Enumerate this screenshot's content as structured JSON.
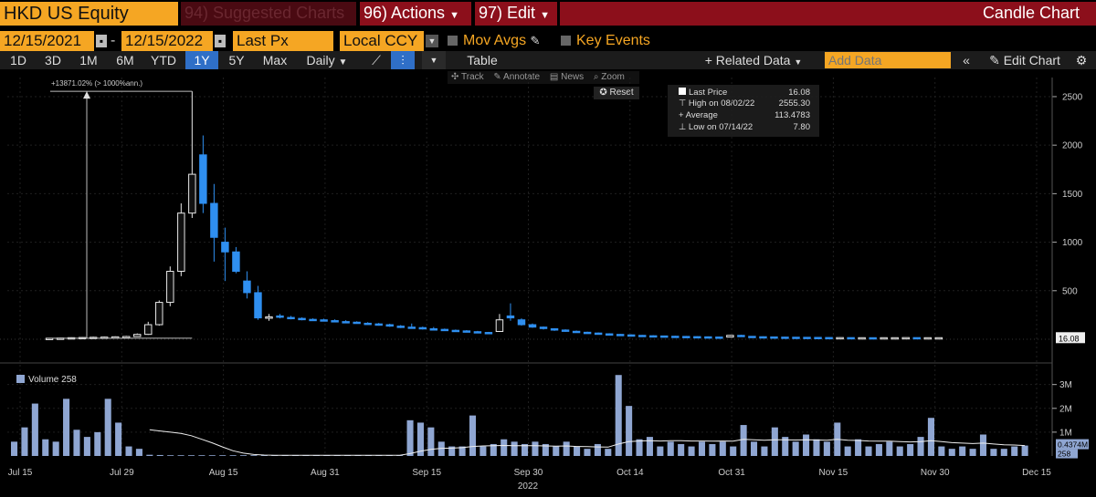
{
  "toolbar": {
    "ticker": "HKD US Equity",
    "suggested": "94) Suggested Charts",
    "actions": "96) Actions",
    "edit": "97) Edit",
    "chart_type": "Candle Chart",
    "start_date": "12/15/2021",
    "end_date": "12/15/2022",
    "field": "Last Px",
    "currency": "Local CCY",
    "mov_avgs": "Mov Avgs",
    "key_events": "Key Events",
    "periods": [
      "1D",
      "3D",
      "1M",
      "6M",
      "YTD",
      "1Y",
      "5Y",
      "Max"
    ],
    "selected_period": "1Y",
    "frequency": "Daily",
    "table": "Table",
    "related": "+ Related Data",
    "add_data_placeholder": "Add Data",
    "edit_chart": "Edit Chart"
  },
  "tools": {
    "track": "Track",
    "annotate": "Annotate",
    "news": "News",
    "zoom": "Zoom",
    "reset": "Reset"
  },
  "legend": {
    "last_label": "Last Price",
    "last_value": "16.08",
    "high_label": "High on 08/02/22",
    "high_value": "2555.30",
    "avg_label": "Average",
    "avg_value": "113.4783",
    "low_label": "Low on 07/14/22",
    "low_value": "7.80"
  },
  "annotation": "+13871.02% (> 1000%ann.)",
  "price_tag": "16.08",
  "volume_label": "Volume 258",
  "volume_tag_top": "0.4374M",
  "volume_tag_bottom": "258",
  "colors": {
    "up": "#e8e8e8",
    "down": "#2f8ff0",
    "volume": "#8fa6d2",
    "accent": "#f5a623"
  },
  "chart_data": [
    {
      "type": "candlestick",
      "title": "",
      "yaxis_ticks": [
        500,
        1000,
        1500,
        2000,
        2500
      ],
      "ylim": [
        0,
        2650
      ],
      "x_ticks": [
        "Jul 15",
        "Jul 29",
        "Aug 15",
        "Aug 31",
        "Sep 15",
        "Sep 30",
        "Oct 14",
        "Oct 31",
        "Nov 15",
        "Nov 30",
        "Dec 15"
      ],
      "x_year": "2022",
      "ohlc": [
        [
          7.8,
          12,
          7.8,
          10
        ],
        [
          10,
          15,
          9,
          12
        ],
        [
          12,
          20,
          11,
          16
        ],
        [
          16,
          22,
          14,
          18
        ],
        [
          18,
          26,
          16,
          20
        ],
        [
          20,
          28,
          18,
          22
        ],
        [
          22,
          30,
          20,
          25
        ],
        [
          25,
          35,
          22,
          28
        ],
        [
          28,
          60,
          26,
          50
        ],
        [
          50,
          180,
          45,
          150
        ],
        [
          150,
          400,
          140,
          380
        ],
        [
          380,
          750,
          340,
          700
        ],
        [
          700,
          1400,
          650,
          1300
        ],
        [
          1300,
          2555,
          1250,
          1700
        ],
        [
          1900,
          2100,
          1300,
          1400
        ],
        [
          1400,
          1600,
          800,
          1050
        ],
        [
          1000,
          1150,
          600,
          900
        ],
        [
          900,
          950,
          680,
          700
        ],
        [
          600,
          700,
          420,
          480
        ],
        [
          480,
          550,
          200,
          220
        ],
        [
          220,
          260,
          190,
          230
        ],
        [
          240,
          260,
          215,
          230
        ],
        [
          225,
          240,
          205,
          215
        ],
        [
          215,
          225,
          195,
          205
        ],
        [
          205,
          215,
          190,
          195
        ],
        [
          200,
          212,
          185,
          190
        ],
        [
          192,
          205,
          178,
          182
        ],
        [
          182,
          196,
          170,
          176
        ],
        [
          176,
          185,
          160,
          165
        ],
        [
          165,
          176,
          150,
          158
        ],
        [
          158,
          168,
          140,
          150
        ],
        [
          150,
          160,
          128,
          135
        ],
        [
          135,
          146,
          115,
          125
        ],
        [
          125,
          162,
          112,
          118
        ],
        [
          120,
          130,
          100,
          108
        ],
        [
          108,
          126,
          95,
          102
        ],
        [
          102,
          110,
          85,
          92
        ],
        [
          92,
          100,
          78,
          85
        ],
        [
          86,
          94,
          70,
          78
        ],
        [
          78,
          86,
          64,
          70
        ],
        [
          70,
          76,
          58,
          62
        ],
        [
          80,
          260,
          78,
          200
        ],
        [
          240,
          370,
          190,
          220
        ],
        [
          200,
          215,
          140,
          150
        ],
        [
          150,
          162,
          118,
          125
        ],
        [
          125,
          132,
          100,
          110
        ],
        [
          108,
          114,
          86,
          95
        ],
        [
          95,
          102,
          76,
          82
        ],
        [
          82,
          90,
          66,
          72
        ],
        [
          72,
          78,
          58,
          64
        ],
        [
          64,
          70,
          50,
          56
        ],
        [
          56,
          62,
          44,
          50
        ],
        [
          50,
          55,
          40,
          45
        ],
        [
          45,
          50,
          36,
          40
        ],
        [
          40,
          44,
          32,
          36
        ],
        [
          36,
          42,
          30,
          34
        ],
        [
          34,
          38,
          28,
          31
        ],
        [
          31,
          36,
          26,
          29
        ],
        [
          29,
          34,
          24,
          27
        ],
        [
          27,
          31,
          22,
          25
        ],
        [
          25,
          29,
          21,
          23
        ],
        [
          23,
          27,
          20,
          22
        ],
        [
          22,
          44,
          20,
          40
        ],
        [
          40,
          46,
          26,
          30
        ],
        [
          30,
          33,
          24,
          26
        ],
        [
          26,
          30,
          22,
          24
        ],
        [
          24,
          27,
          20,
          22
        ],
        [
          22,
          25,
          19,
          21
        ],
        [
          21,
          24,
          18,
          20
        ],
        [
          20,
          23,
          17,
          19
        ],
        [
          19,
          22,
          16,
          18
        ],
        [
          18,
          21,
          16,
          17
        ],
        [
          17,
          20,
          15,
          17
        ],
        [
          17,
          19,
          15,
          16
        ],
        [
          16,
          19,
          14,
          16
        ],
        [
          16,
          18,
          14,
          15
        ],
        [
          15,
          18,
          13,
          16
        ],
        [
          16,
          18,
          14,
          16
        ],
        [
          16,
          18,
          14,
          17
        ],
        [
          17,
          19,
          15,
          16
        ],
        [
          16,
          18,
          14,
          16
        ],
        [
          16,
          18,
          14,
          16.08
        ]
      ]
    },
    {
      "type": "bar",
      "title": "Volume",
      "yaxis_ticks": [
        "1M",
        "2M",
        "3M"
      ],
      "ylim": [
        0,
        3600000
      ],
      "values": [
        600000,
        1200000,
        2200000,
        700000,
        600000,
        2400000,
        1100000,
        800000,
        1000000,
        2400000,
        1400000,
        400000,
        300000,
        50000,
        40000,
        30000,
        30000,
        30000,
        30000,
        30000,
        30000,
        30000,
        30000,
        30000,
        30000,
        30000,
        30000,
        30000,
        30000,
        30000,
        30000,
        30000,
        30000,
        30000,
        30000,
        30000,
        30000,
        30000,
        1500000,
        1400000,
        1200000,
        600000,
        400000,
        400000,
        1700000,
        400000,
        500000,
        700000,
        600000,
        500000,
        600000,
        500000,
        400000,
        600000,
        400000,
        300000,
        500000,
        300000,
        3400000,
        2100000,
        700000,
        800000,
        400000,
        600000,
        500000,
        400000,
        600000,
        500000,
        600000,
        400000,
        1300000,
        600000,
        400000,
        1200000,
        800000,
        600000,
        900000,
        700000,
        600000,
        1400000,
        400000,
        700000,
        400000,
        500000,
        600000,
        400000,
        500000,
        800000,
        1600000,
        400000,
        300000,
        400000,
        300000,
        900000,
        300000,
        300000,
        400000,
        437400
      ],
      "average_line": [
        null,
        null,
        null,
        null,
        null,
        null,
        null,
        null,
        null,
        null,
        null,
        null,
        null,
        1100000,
        1050000,
        1000000,
        950000,
        850000,
        700000,
        550000,
        380000,
        220000,
        120000,
        60000,
        40000,
        30000,
        30000,
        30000,
        30000,
        30000,
        30000,
        30000,
        30000,
        30000,
        30000,
        30000,
        30000,
        30000,
        100000,
        200000,
        280000,
        320000,
        330000,
        350000,
        400000,
        420000,
        430000,
        440000,
        430000,
        430000,
        430000,
        420000,
        410000,
        420000,
        400000,
        390000,
        380000,
        370000,
        500000,
        600000,
        630000,
        640000,
        630000,
        640000,
        640000,
        630000,
        630000,
        620000,
        630000,
        620000,
        700000,
        680000,
        660000,
        680000,
        680000,
        670000,
        680000,
        670000,
        660000,
        700000,
        660000,
        650000,
        630000,
        620000,
        620000,
        600000,
        590000,
        600000,
        640000,
        600000,
        560000,
        540000,
        520000,
        540000,
        500000,
        470000,
        460000,
        437400
      ]
    }
  ]
}
